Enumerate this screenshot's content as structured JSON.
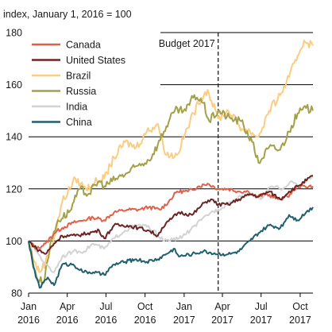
{
  "chart_data": {
    "type": "line",
    "unit_label": "index, January 1, 2016 = 100",
    "ylim": [
      80,
      180
    ],
    "y_ticks": [
      80,
      100,
      120,
      140,
      160,
      180
    ],
    "xlim": [
      "2016-01-01",
      "2017-10-31"
    ],
    "x_ticks": [
      {
        "date": "2016-01-01",
        "line1": "Jan",
        "line2": "2016"
      },
      {
        "date": "2016-04-01",
        "line1": "Apr",
        "line2": "2016"
      },
      {
        "date": "2016-07-01",
        "line1": "Jul",
        "line2": "2016"
      },
      {
        "date": "2016-10-01",
        "line1": "Oct",
        "line2": "2016"
      },
      {
        "date": "2017-01-01",
        "line1": "Jan",
        "line2": "2017"
      },
      {
        "date": "2017-04-01",
        "line1": "Apr",
        "line2": "2017"
      },
      {
        "date": "2017-07-01",
        "line1": "Jul",
        "line2": "2017"
      },
      {
        "date": "2017-10-01",
        "line1": "Oct",
        "line2": "2017"
      }
    ],
    "grid": "horizontal",
    "legend_position": "top-left",
    "annotation": {
      "label": "Budget 2017",
      "date": "2017-03-22",
      "style": "dashed-vertical"
    },
    "series": [
      {
        "name": "Canada",
        "color": "#e0604a",
        "points": [
          [
            "2016-01-01",
            100
          ],
          [
            "2016-01-20",
            97
          ],
          [
            "2016-02-10",
            99
          ],
          [
            "2016-03-01",
            103
          ],
          [
            "2016-03-20",
            105
          ],
          [
            "2016-04-15",
            107
          ],
          [
            "2016-05-10",
            108
          ],
          [
            "2016-06-01",
            109
          ],
          [
            "2016-06-27",
            108
          ],
          [
            "2016-07-20",
            111
          ],
          [
            "2016-08-20",
            112
          ],
          [
            "2016-09-15",
            112
          ],
          [
            "2016-10-10",
            113
          ],
          [
            "2016-11-05",
            112
          ],
          [
            "2016-11-25",
            115
          ],
          [
            "2016-12-15",
            119
          ],
          [
            "2017-01-10",
            119
          ],
          [
            "2017-02-05",
            121
          ],
          [
            "2017-02-25",
            122
          ],
          [
            "2017-03-22",
            120
          ],
          [
            "2017-04-15",
            120
          ],
          [
            "2017-05-10",
            119
          ],
          [
            "2017-06-01",
            119
          ],
          [
            "2017-06-20",
            117
          ],
          [
            "2017-07-15",
            118
          ],
          [
            "2017-08-10",
            116
          ],
          [
            "2017-09-01",
            117
          ],
          [
            "2017-09-25",
            121
          ],
          [
            "2017-10-31",
            121
          ]
        ]
      },
      {
        "name": "United States",
        "color": "#6b2424",
        "points": [
          [
            "2016-01-01",
            100
          ],
          [
            "2016-01-20",
            97
          ],
          [
            "2016-02-10",
            95
          ],
          [
            "2016-03-01",
            99
          ],
          [
            "2016-03-20",
            102
          ],
          [
            "2016-04-20",
            102
          ],
          [
            "2016-05-20",
            103
          ],
          [
            "2016-06-15",
            104
          ],
          [
            "2016-06-27",
            101
          ],
          [
            "2016-07-20",
            106
          ],
          [
            "2016-08-20",
            106
          ],
          [
            "2016-09-15",
            105
          ],
          [
            "2016-10-10",
            104
          ],
          [
            "2016-10-31",
            102
          ],
          [
            "2016-11-10",
            105
          ],
          [
            "2016-12-05",
            109
          ],
          [
            "2016-12-20",
            111
          ],
          [
            "2017-01-20",
            110
          ],
          [
            "2017-02-20",
            115
          ],
          [
            "2017-03-05",
            116
          ],
          [
            "2017-03-22",
            114
          ],
          [
            "2017-04-15",
            114
          ],
          [
            "2017-05-10",
            116
          ],
          [
            "2017-06-05",
            118
          ],
          [
            "2017-06-25",
            117
          ],
          [
            "2017-07-20",
            119
          ],
          [
            "2017-08-15",
            116
          ],
          [
            "2017-09-05",
            119
          ],
          [
            "2017-09-25",
            121
          ],
          [
            "2017-10-31",
            125
          ]
        ]
      },
      {
        "name": "Brazil",
        "color": "#fccc80",
        "points": [
          [
            "2016-01-01",
            100
          ],
          [
            "2016-01-15",
            92
          ],
          [
            "2016-01-26",
            88
          ],
          [
            "2016-02-10",
            92
          ],
          [
            "2016-03-01",
            101
          ],
          [
            "2016-03-20",
            115
          ],
          [
            "2016-04-20",
            124
          ],
          [
            "2016-05-15",
            120
          ],
          [
            "2016-06-10",
            123
          ],
          [
            "2016-06-27",
            124
          ],
          [
            "2016-07-20",
            132
          ],
          [
            "2016-08-15",
            138
          ],
          [
            "2016-09-10",
            136
          ],
          [
            "2016-10-05",
            142
          ],
          [
            "2016-10-31",
            145
          ],
          [
            "2016-11-20",
            133
          ],
          [
            "2016-12-15",
            133
          ],
          [
            "2017-01-15",
            146
          ],
          [
            "2017-02-10",
            155
          ],
          [
            "2017-02-25",
            158
          ],
          [
            "2017-03-22",
            147
          ],
          [
            "2017-04-15",
            150
          ],
          [
            "2017-05-17",
            143
          ],
          [
            "2017-06-05",
            142
          ],
          [
            "2017-06-25",
            140
          ],
          [
            "2017-07-20",
            150
          ],
          [
            "2017-08-15",
            156
          ],
          [
            "2017-09-05",
            163
          ],
          [
            "2017-09-25",
            171
          ],
          [
            "2017-10-10",
            177
          ],
          [
            "2017-10-31",
            175
          ]
        ]
      },
      {
        "name": "Russia",
        "color": "#a3a048",
        "points": [
          [
            "2016-01-01",
            100
          ],
          [
            "2016-01-20",
            86
          ],
          [
            "2016-02-05",
            84
          ],
          [
            "2016-02-20",
            98
          ],
          [
            "2016-03-10",
            108
          ],
          [
            "2016-04-05",
            111
          ],
          [
            "2016-05-01",
            120
          ],
          [
            "2016-05-20",
            118
          ],
          [
            "2016-06-15",
            123
          ],
          [
            "2016-06-27",
            121
          ],
          [
            "2016-07-25",
            124
          ],
          [
            "2016-08-20",
            126
          ],
          [
            "2016-09-15",
            129
          ],
          [
            "2016-10-10",
            131
          ],
          [
            "2016-10-31",
            137
          ],
          [
            "2016-11-20",
            144
          ],
          [
            "2016-12-10",
            150
          ],
          [
            "2017-01-05",
            150
          ],
          [
            "2017-01-25",
            156
          ],
          [
            "2017-02-15",
            153
          ],
          [
            "2017-03-01",
            146
          ],
          [
            "2017-03-22",
            150
          ],
          [
            "2017-04-20",
            147
          ],
          [
            "2017-05-15",
            146
          ],
          [
            "2017-06-10",
            138
          ],
          [
            "2017-06-25",
            130
          ],
          [
            "2017-07-20",
            136
          ],
          [
            "2017-08-15",
            135
          ],
          [
            "2017-09-05",
            142
          ],
          [
            "2017-09-25",
            149
          ],
          [
            "2017-10-15",
            151
          ],
          [
            "2017-10-31",
            150
          ]
        ]
      },
      {
        "name": "India",
        "color": "#d3d3d3",
        "points": [
          [
            "2016-01-01",
            100
          ],
          [
            "2016-01-20",
            96
          ],
          [
            "2016-02-10",
            91
          ],
          [
            "2016-02-29",
            88
          ],
          [
            "2016-03-20",
            94
          ],
          [
            "2016-04-15",
            96
          ],
          [
            "2016-05-10",
            96
          ],
          [
            "2016-06-01",
            99
          ],
          [
            "2016-06-27",
            97
          ],
          [
            "2016-07-20",
            101
          ],
          [
            "2016-08-15",
            104
          ],
          [
            "2016-09-10",
            106
          ],
          [
            "2016-09-30",
            106
          ],
          [
            "2016-10-20",
            104
          ],
          [
            "2016-11-15",
            100
          ],
          [
            "2016-12-20",
            101
          ],
          [
            "2017-01-15",
            104
          ],
          [
            "2017-02-10",
            108
          ],
          [
            "2017-03-05",
            111
          ],
          [
            "2017-03-22",
            112
          ],
          [
            "2017-04-20",
            115
          ],
          [
            "2017-05-15",
            117
          ],
          [
            "2017-06-10",
            118
          ],
          [
            "2017-06-30",
            116
          ],
          [
            "2017-07-25",
            121
          ],
          [
            "2017-08-20",
            120
          ],
          [
            "2017-09-10",
            123
          ],
          [
            "2017-09-25",
            121
          ],
          [
            "2017-10-31",
            125
          ]
        ]
      },
      {
        "name": "China",
        "color": "#1f5f6e",
        "points": [
          [
            "2016-01-01",
            100
          ],
          [
            "2016-01-12",
            90
          ],
          [
            "2016-01-27",
            82
          ],
          [
            "2016-02-15",
            86
          ],
          [
            "2016-03-01",
            83
          ],
          [
            "2016-03-20",
            91
          ],
          [
            "2016-04-15",
            91
          ],
          [
            "2016-05-10",
            88
          ],
          [
            "2016-06-01",
            88
          ],
          [
            "2016-06-27",
            87
          ],
          [
            "2016-07-20",
            91
          ],
          [
            "2016-08-15",
            92
          ],
          [
            "2016-09-10",
            93
          ],
          [
            "2016-10-05",
            92
          ],
          [
            "2016-10-31",
            93
          ],
          [
            "2016-11-20",
            95
          ],
          [
            "2016-12-10",
            97
          ],
          [
            "2016-12-20",
            94
          ],
          [
            "2017-01-20",
            95
          ],
          [
            "2017-02-15",
            96
          ],
          [
            "2017-03-22",
            95
          ],
          [
            "2017-04-20",
            95
          ],
          [
            "2017-05-10",
            96
          ],
          [
            "2017-06-05",
            100
          ],
          [
            "2017-06-25",
            103
          ],
          [
            "2017-07-20",
            106
          ],
          [
            "2017-08-15",
            105
          ],
          [
            "2017-09-05",
            110
          ],
          [
            "2017-09-25",
            108
          ],
          [
            "2017-10-15",
            111
          ],
          [
            "2017-10-31",
            113
          ]
        ]
      }
    ]
  }
}
